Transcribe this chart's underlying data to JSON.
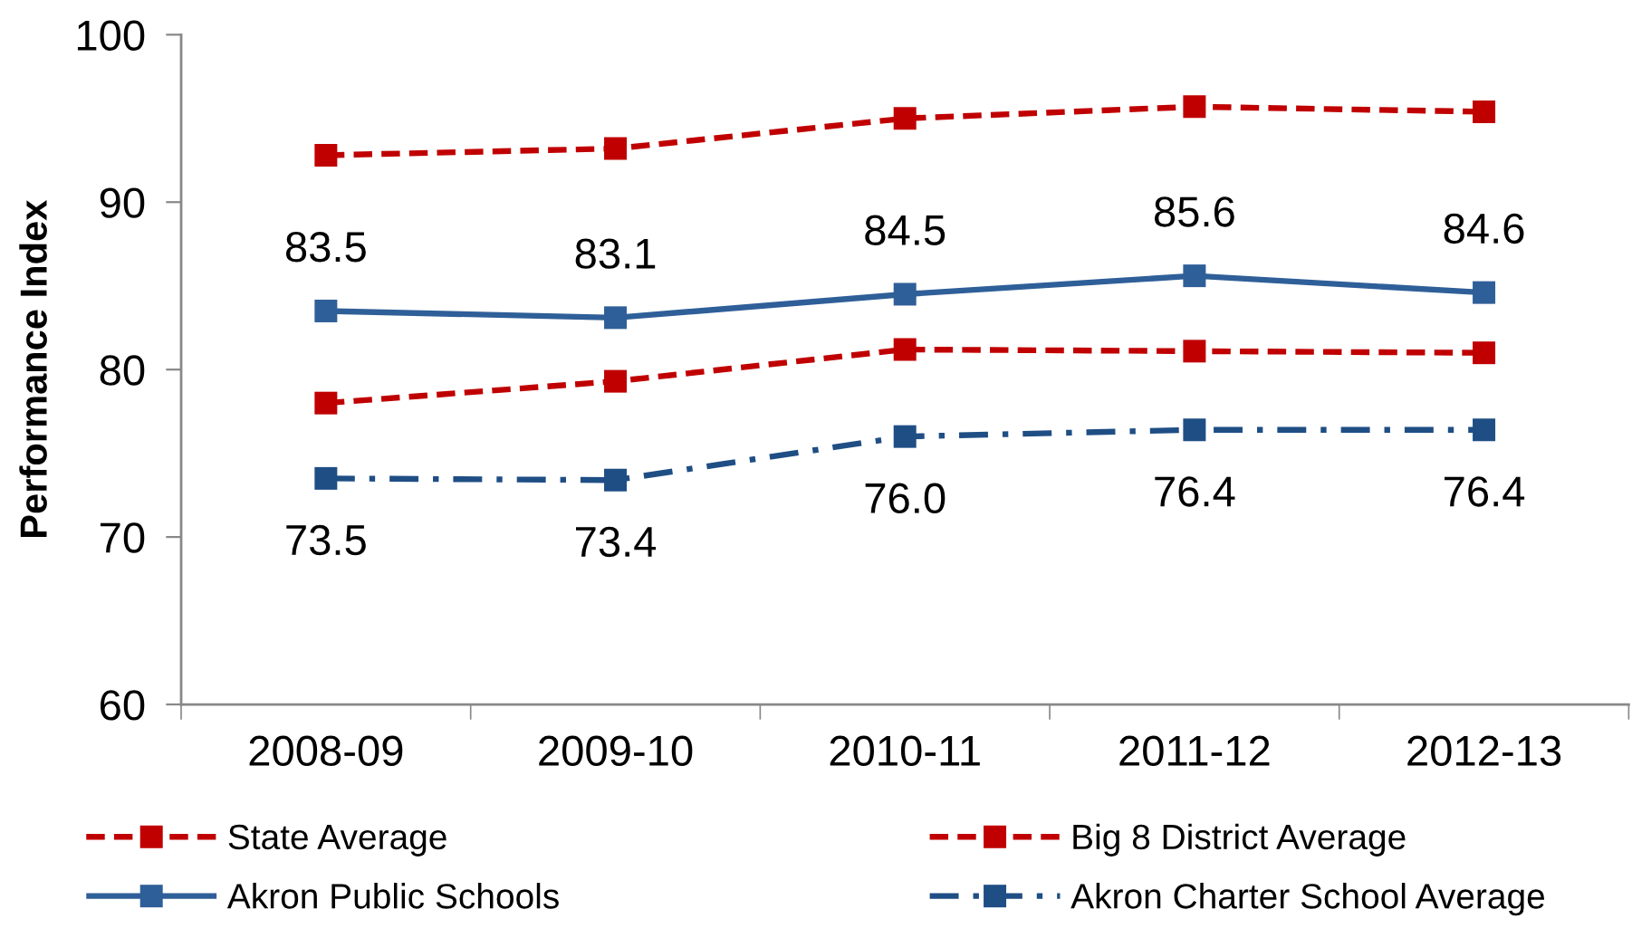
{
  "chart_data": {
    "type": "line",
    "ylabel": "Performance Index",
    "categories": [
      "2008-09",
      "2009-10",
      "2010-11",
      "2011-12",
      "2012-13"
    ],
    "series": [
      {
        "name": "State Average",
        "color": "#c00000",
        "line_style": "dashed",
        "values": [
          92.8,
          93.2,
          95.0,
          95.7,
          95.4
        ]
      },
      {
        "name": "Big 8 District Average",
        "color": "#c00000",
        "line_style": "dashed",
        "values": [
          78.0,
          79.3,
          81.2,
          81.1,
          81.0
        ]
      },
      {
        "name": "Akron Public Schools",
        "color": "#2f5f98",
        "line_style": "solid",
        "values": [
          83.5,
          83.1,
          84.5,
          85.6,
          84.6
        ],
        "value_labels": [
          "83.5",
          "83.1",
          "84.5",
          "85.6",
          "84.6"
        ]
      },
      {
        "name": "Akron Charter School Average",
        "color": "#1f4e85",
        "line_style": "dashdot",
        "values": [
          73.5,
          73.4,
          76.0,
          76.4,
          76.4
        ],
        "value_labels": [
          "73.5",
          "73.4",
          "76.0",
          "76.4",
          "76.4"
        ]
      }
    ],
    "ylim": [
      60,
      100
    ],
    "yticks": [
      60,
      70,
      80,
      90,
      100
    ],
    "marker": "square",
    "grid": false,
    "legend": "bottom"
  }
}
